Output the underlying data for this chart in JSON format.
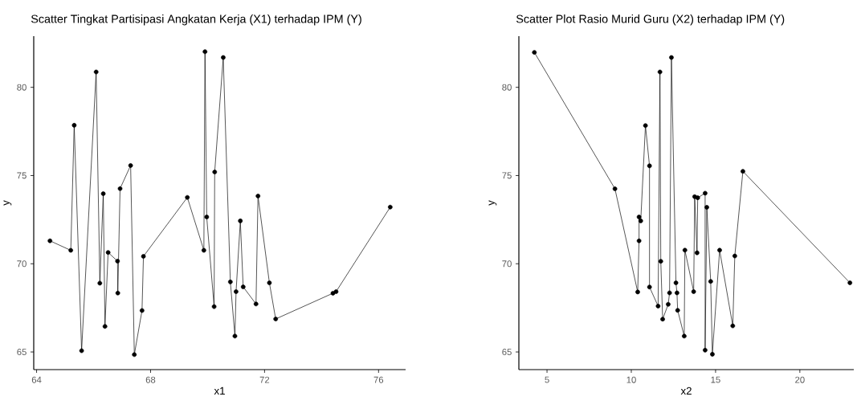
{
  "chart_data": [
    {
      "type": "line",
      "title": "Scatter Tingkat Partisipasi Angkatan Kerja (X1) terhadap IPM (Y)",
      "xlabel": "x1",
      "ylabel": "y",
      "color": "#000000",
      "marker": "circle",
      "line_style": "solid",
      "x": [
        64.47,
        65.2,
        65.32,
        65.58,
        66.09,
        66.22,
        66.34,
        66.4,
        66.51,
        66.84,
        66.85,
        66.93,
        67.3,
        67.43,
        67.7,
        67.75,
        69.29,
        69.87,
        69.91,
        69.97,
        70.23,
        70.25,
        70.55,
        70.8,
        70.96,
        71.0,
        71.15,
        71.25,
        71.7,
        71.77,
        72.17,
        72.39,
        74.4,
        74.51,
        76.41
      ],
      "values": [
        71.3,
        70.76,
        77.85,
        65.07,
        80.87,
        68.9,
        73.97,
        66.45,
        70.64,
        70.15,
        68.34,
        74.26,
        75.57,
        64.85,
        67.35,
        70.42,
        73.76,
        70.76,
        82.02,
        72.65,
        67.57,
        75.2,
        81.69,
        68.97,
        65.9,
        68.42,
        72.43,
        68.69,
        67.72,
        73.84,
        68.92,
        66.87,
        68.33,
        68.42,
        73.21
      ],
      "xlim": [
        63.9,
        76.95
      ],
      "ylim": [
        64.0,
        82.9
      ],
      "xticks": [
        64,
        68,
        72,
        76
      ],
      "yticks": [
        65,
        70,
        75,
        80
      ]
    },
    {
      "type": "line",
      "title": "Scatter Plot Rasio Murid Guru (X2) terhadap IPM (Y)",
      "xlabel": "x2",
      "ylabel": "y",
      "color": "#000000",
      "marker": "circle",
      "line_style": "solid",
      "x": [
        4.25,
        9.03,
        10.38,
        10.46,
        10.46,
        10.56,
        10.84,
        11.08,
        11.08,
        11.59,
        11.7,
        11.75,
        11.86,
        12.19,
        12.27,
        12.38,
        12.65,
        12.71,
        12.75,
        13.14,
        13.18,
        13.7,
        13.76,
        13.9,
        13.94,
        14.38,
        14.38,
        14.48,
        14.71,
        14.81,
        15.24,
        16.02,
        16.14,
        16.62,
        22.97
      ],
      "values": [
        81.98,
        74.25,
        68.4,
        71.3,
        72.65,
        72.43,
        77.83,
        75.55,
        68.68,
        67.6,
        80.87,
        70.14,
        66.86,
        67.7,
        68.35,
        81.69,
        68.92,
        68.35,
        67.36,
        65.9,
        70.77,
        68.42,
        73.8,
        70.62,
        73.74,
        74.0,
        65.1,
        73.2,
        69.0,
        64.87,
        70.77,
        66.48,
        70.44,
        75.24,
        68.92
      ],
      "xlim": [
        3.33,
        23.2
      ],
      "ylim": [
        64.0,
        82.9
      ],
      "xticks": [
        5,
        10,
        15,
        20
      ],
      "yticks": [
        65,
        70,
        75,
        80
      ]
    }
  ]
}
